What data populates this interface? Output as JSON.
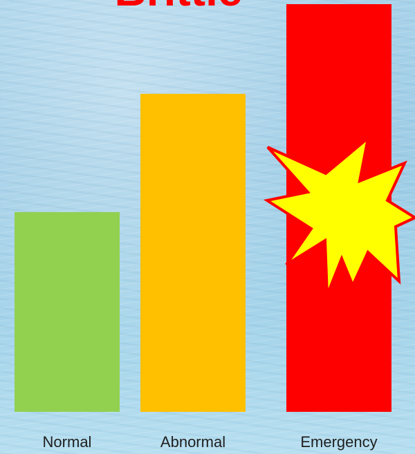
{
  "chart_data": {
    "type": "bar",
    "title": "Brittle",
    "categories": [
      "Normal",
      "Abnormal",
      "Emergency"
    ],
    "values": [
      49,
      78,
      100
    ],
    "ylim": [
      0,
      100
    ],
    "grid": false,
    "colors": [
      "#92d050",
      "#ffc000",
      "#ff0000"
    ],
    "annotation": {
      "shape": "explosion-burst",
      "category": "Emergency",
      "fill": "#ffff00",
      "stroke": "#ff0000"
    }
  }
}
